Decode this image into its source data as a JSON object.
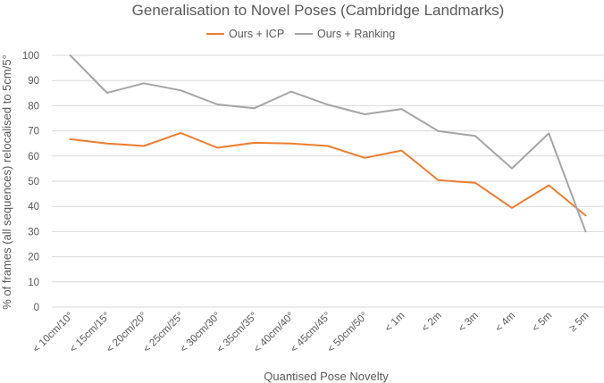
{
  "chart_data": {
    "type": "line",
    "title": "Generalisation to Novel Poses (Cambridge Landmarks)",
    "xlabel": "Quantised Pose Novelty",
    "ylabel": "% of frames (all sequences) relocalised to 5cm/5°",
    "ylim": [
      0,
      100
    ],
    "yticks": [
      "0",
      "10",
      "20",
      "30",
      "40",
      "50",
      "60",
      "70",
      "80",
      "90",
      "100"
    ],
    "grid": true,
    "legend_position": "top",
    "categories": [
      "< 10cm/10°",
      "< 15cm/15°",
      "< 20cm/20°",
      "< 25cm/25°",
      "< 30cm/30°",
      "< 35cm/35°",
      "< 40cm/40°",
      "< 45cm/45°",
      "< 50cm/50°",
      "< 1m",
      "< 2m",
      "< 3m",
      "< 4m",
      "< 5m",
      "≥ 5m"
    ],
    "series": [
      {
        "name": "Ours + ICP",
        "color": "#ED7D31",
        "values": [
          66.7,
          65.0,
          64.0,
          69.2,
          63.3,
          65.3,
          65.0,
          64.0,
          59.3,
          62.2,
          50.4,
          49.4,
          39.4,
          48.4,
          36.4
        ]
      },
      {
        "name": "Ours + Ranking",
        "color": "#A5A5A5",
        "values": [
          100,
          85.1,
          88.9,
          86.1,
          80.5,
          79.0,
          85.6,
          80.4,
          76.6,
          78.7,
          69.9,
          68.0,
          55.1,
          69.0,
          30.0
        ]
      }
    ]
  }
}
